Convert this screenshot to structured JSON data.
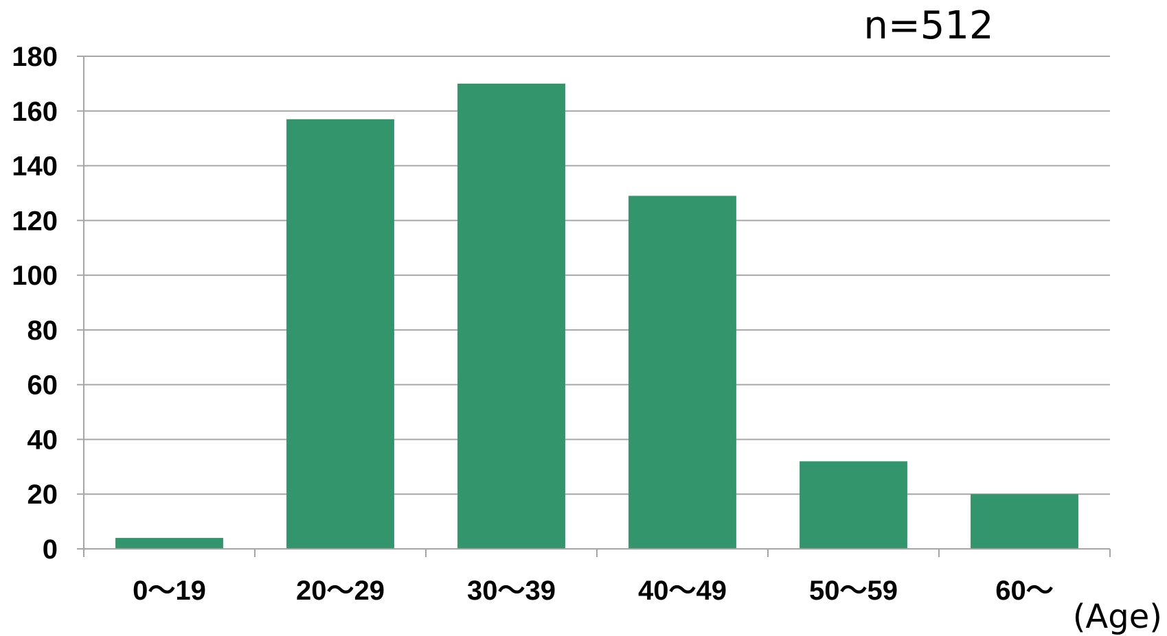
{
  "chart_data": {
    "type": "bar",
    "categories": [
      "0～19",
      "20～29",
      "30～39",
      "40～49",
      "50～59",
      "60～"
    ],
    "values": [
      4,
      157,
      170,
      129,
      32,
      20
    ],
    "ylim": [
      0,
      180
    ],
    "yticks": [
      0,
      20,
      40,
      60,
      80,
      100,
      120,
      140,
      160,
      180
    ],
    "ytick_labels": [
      "0",
      "20",
      "40",
      "60",
      "80",
      "100",
      "120",
      "140",
      "160",
      "180"
    ],
    "title": "",
    "xlabel": "(Age)",
    "ylabel": "",
    "annotation": "n=512",
    "grid": true,
    "legend": "none",
    "bar_color": "#33956B",
    "grid_color": "#A6A6A6",
    "axis_color": "#A6A6A6"
  }
}
